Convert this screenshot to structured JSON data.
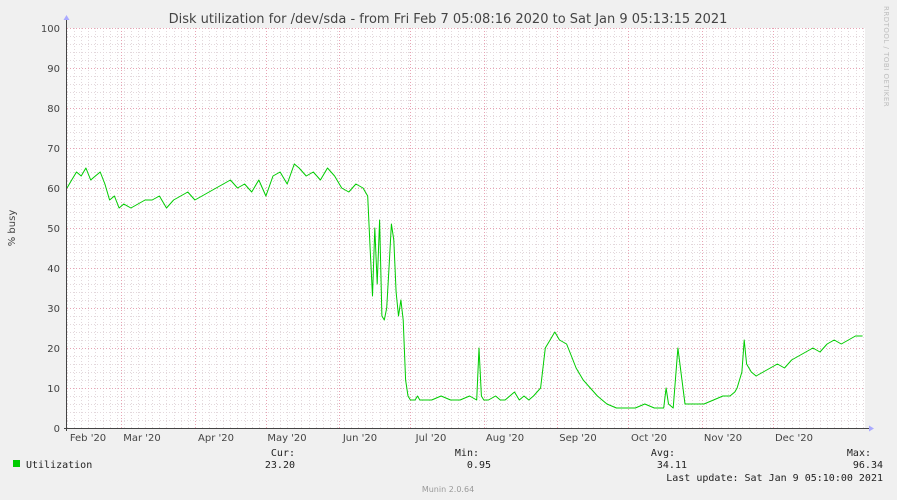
{
  "chart_data": {
    "type": "line",
    "title": "Disk utilization for /dev/sda - from Fri Feb  7 05:08:16 2020 to Sat Jan  9 05:13:15 2021",
    "ylabel": "% busy",
    "xlabel": "",
    "ylim": [
      0,
      100
    ],
    "y_ticks": [
      "0",
      "10",
      "20",
      "30",
      "40",
      "50",
      "60",
      "70",
      "80",
      "90",
      "100"
    ],
    "x_start": "2020-02-07",
    "x_end": "2021-01-09",
    "x_ticks": [
      {
        "label": "Feb '20",
        "date": "2020-02-07"
      },
      {
        "label": "Mar '20",
        "date": "2020-03-01"
      },
      {
        "label": "Apr '20",
        "date": "2020-04-01"
      },
      {
        "label": "May '20",
        "date": "2020-05-01"
      },
      {
        "label": "Jun '20",
        "date": "2020-06-01"
      },
      {
        "label": "Jul '20",
        "date": "2020-07-01"
      },
      {
        "label": "Aug '20",
        "date": "2020-08-01"
      },
      {
        "label": "Sep '20",
        "date": "2020-09-01"
      },
      {
        "label": "Oct '20",
        "date": "2020-10-01"
      },
      {
        "label": "Nov '20",
        "date": "2020-11-01"
      },
      {
        "label": "Dec '20",
        "date": "2020-12-01"
      }
    ],
    "grid": true,
    "legend_position": "bottom-left",
    "watermark": "RRDTOOL / TOBI OETIKER",
    "colors": {
      "background": "#f0f0f0",
      "plot_background": "#ffffff",
      "line": "#00cc00",
      "minor_grid": "#e3d8dc",
      "major_grid": "#e8a3b4",
      "axis": "#444444"
    },
    "series": [
      {
        "name": "Utilization",
        "color": "#00cc00",
        "x": [
          "2020-02-07",
          "2020-02-09",
          "2020-02-11",
          "2020-02-13",
          "2020-02-15",
          "2020-02-17",
          "2020-02-19",
          "2020-02-21",
          "2020-02-23",
          "2020-02-25",
          "2020-02-27",
          "2020-02-29",
          "2020-03-02",
          "2020-03-05",
          "2020-03-08",
          "2020-03-11",
          "2020-03-14",
          "2020-03-17",
          "2020-03-20",
          "2020-03-23",
          "2020-03-26",
          "2020-03-29",
          "2020-04-01",
          "2020-04-04",
          "2020-04-07",
          "2020-04-10",
          "2020-04-13",
          "2020-04-16",
          "2020-04-19",
          "2020-04-22",
          "2020-04-25",
          "2020-04-28",
          "2020-05-01",
          "2020-05-04",
          "2020-05-07",
          "2020-05-10",
          "2020-05-13",
          "2020-05-15",
          "2020-05-18",
          "2020-05-21",
          "2020-05-24",
          "2020-05-27",
          "2020-05-30",
          "2020-06-02",
          "2020-06-05",
          "2020-06-08",
          "2020-06-11",
          "2020-06-13",
          "2020-06-14",
          "2020-06-15",
          "2020-06-16",
          "2020-06-17",
          "2020-06-18",
          "2020-06-19",
          "2020-06-20",
          "2020-06-21",
          "2020-06-22",
          "2020-06-23",
          "2020-06-24",
          "2020-06-25",
          "2020-06-26",
          "2020-06-27",
          "2020-06-28",
          "2020-06-29",
          "2020-06-30",
          "2020-07-01",
          "2020-07-02",
          "2020-07-03",
          "2020-07-04",
          "2020-07-05",
          "2020-07-07",
          "2020-07-10",
          "2020-07-14",
          "2020-07-18",
          "2020-07-22",
          "2020-07-26",
          "2020-07-29",
          "2020-07-30",
          "2020-07-31",
          "2020-08-01",
          "2020-08-03",
          "2020-08-06",
          "2020-08-08",
          "2020-08-10",
          "2020-08-12",
          "2020-08-14",
          "2020-08-16",
          "2020-08-18",
          "2020-08-20",
          "2020-08-22",
          "2020-08-25",
          "2020-08-27",
          "2020-08-29",
          "2020-08-31",
          "2020-09-02",
          "2020-09-05",
          "2020-09-07",
          "2020-09-09",
          "2020-09-12",
          "2020-09-15",
          "2020-09-18",
          "2020-09-22",
          "2020-09-26",
          "2020-09-30",
          "2020-10-04",
          "2020-10-08",
          "2020-10-12",
          "2020-10-15",
          "2020-10-16",
          "2020-10-17",
          "2020-10-18",
          "2020-10-20",
          "2020-10-22",
          "2020-10-25",
          "2020-10-29",
          "2020-11-02",
          "2020-11-06",
          "2020-11-10",
          "2020-11-13",
          "2020-11-15",
          "2020-11-16",
          "2020-11-17",
          "2020-11-18",
          "2020-11-19",
          "2020-11-20",
          "2020-11-22",
          "2020-11-24",
          "2020-11-27",
          "2020-11-30",
          "2020-12-03",
          "2020-12-06",
          "2020-12-09",
          "2020-12-12",
          "2020-12-15",
          "2020-12-18",
          "2020-12-21",
          "2020-12-24",
          "2020-12-27",
          "2020-12-30",
          "2021-01-02",
          "2021-01-05",
          "2021-01-08"
        ],
        "values": [
          60,
          62,
          64,
          63,
          65,
          62,
          63,
          64,
          61,
          57,
          58,
          55,
          56,
          55,
          56,
          57,
          57,
          58,
          55,
          57,
          58,
          59,
          57,
          58,
          59,
          60,
          61,
          62,
          60,
          61,
          59,
          62,
          58,
          63,
          64,
          61,
          66,
          65,
          63,
          64,
          62,
          65,
          63,
          60,
          59,
          61,
          60,
          58,
          45,
          33,
          50,
          36,
          52,
          28,
          27,
          30,
          40,
          51,
          47,
          34,
          28,
          32,
          27,
          12,
          8,
          7,
          7,
          7,
          8,
          7,
          7,
          7,
          8,
          7,
          7,
          8,
          7,
          20,
          8,
          7,
          7,
          8,
          7,
          7,
          8,
          9,
          7,
          8,
          7,
          8,
          10,
          20,
          22,
          24,
          22,
          21,
          18,
          15,
          12,
          10,
          8,
          6,
          5,
          5,
          5,
          6,
          5,
          5,
          5,
          10,
          6,
          5,
          20,
          6,
          6,
          6,
          7,
          8,
          8,
          9,
          10,
          12,
          14,
          22,
          16,
          14,
          13,
          14,
          15,
          16,
          15,
          17,
          18,
          19,
          20,
          19,
          21,
          22,
          21,
          22,
          23,
          23
        ]
      }
    ]
  },
  "legend": {
    "series_label": "Utilization",
    "swatch_color": "#00cc00",
    "cur_label": "Cur:",
    "cur_value": "23.20",
    "min_label": "Min:",
    "min_value": "0.95",
    "avg_label": "Avg:",
    "avg_value": "34.11",
    "max_label": "Max:",
    "max_value": "96.34"
  },
  "last_update": "Last update: Sat Jan  9 05:10:00 2021",
  "footer": "Munin 2.0.64"
}
